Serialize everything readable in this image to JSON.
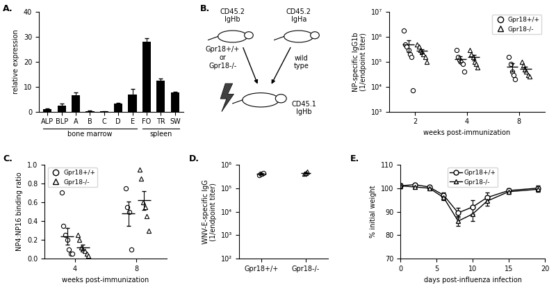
{
  "chart_data": [
    {
      "type": "bar",
      "title": "A.",
      "ylabel": "relative expression",
      "categories": [
        "ALP",
        "BLP",
        "A",
        "B",
        "C",
        "D",
        "E",
        "FO",
        "TR",
        "SW"
      ],
      "values": [
        1.0,
        2.5,
        6.5,
        0.3,
        0.1,
        3.2,
        7.0,
        28.0,
        12.5,
        7.7
      ],
      "error": [
        0.3,
        0.7,
        1.2,
        0.1,
        0.05,
        0.4,
        2.0,
        1.3,
        0.8,
        0.4
      ],
      "groups": [
        {
          "label": "bone marrow",
          "categories": [
            "ALP",
            "BLP",
            "A",
            "B",
            "C",
            "D",
            "E"
          ]
        },
        {
          "label": "spleen",
          "categories": [
            "FO",
            "TR",
            "SW"
          ]
        }
      ],
      "color": "#000000",
      "ylim": [
        0,
        40
      ],
      "yticks": [
        0,
        10,
        20,
        30,
        40
      ]
    },
    {
      "type": "diagram",
      "title": "B.",
      "nodes": [
        {
          "label": "CD45.2\nIgHb"
        },
        {
          "label": "CD45.2\nIgHa"
        },
        {
          "label": "Gpr18+/+\nor\nGpr18-/-"
        },
        {
          "label": "wild\ntype"
        },
        {
          "label": "CD45.1\nIgHb"
        }
      ]
    },
    {
      "type": "dot",
      "ylabel": "NP-specific IgG1b\n(1/endpoint titer)",
      "xlabel": "weeks post-immunization",
      "categories": [
        "2",
        "4",
        "8"
      ],
      "log": "y",
      "legend": "upper right",
      "ylim": [
        1000,
        10000000
      ],
      "yticks": [
        {
          "value": 1000,
          "label": "10³"
        },
        {
          "value": 10000,
          "label": "10⁴"
        },
        {
          "value": 100000,
          "label": "10⁵"
        },
        {
          "value": 1000000,
          "label": "10⁶"
        },
        {
          "value": 10000000,
          "label": "10⁷"
        }
      ],
      "series": [
        {
          "name": "Gpr18+/+",
          "marker": "circle",
          "values": [
            [
              1800000,
              500000,
              400000,
              300000,
              200000,
              150000,
              7000
            ],
            [
              300000,
              150000,
              120000,
              100000,
              80000,
              40000
            ],
            [
              150000,
              80000,
              40000,
              30000,
              20000
            ]
          ],
          "mean": [
            480000,
            130000,
            64000
          ],
          "error": [
            230000,
            37000,
            24000
          ]
        },
        {
          "name": "Gpr18-/-",
          "marker": "triangle",
          "values": [
            [
              500000,
              400000,
              300000,
              250000,
              200000,
              150000,
              100000
            ],
            [
              300000,
              200000,
              150000,
              100000,
              80000,
              60000
            ],
            [
              100000,
              70000,
              50000,
              40000,
              30000,
              25000
            ]
          ],
          "mean": [
            270000,
            150000,
            52000
          ],
          "error": [
            50000,
            37000,
            12000
          ]
        }
      ]
    },
    {
      "type": "dot",
      "title": "C.",
      "ylabel": "NP4:NP16 binding ratio",
      "xlabel": "weeks post-immunization",
      "categories": [
        "4",
        "8"
      ],
      "legend": "upper left",
      "ylim": [
        0,
        1.0
      ],
      "yticks": [
        {
          "value": 0,
          "label": "0.0"
        },
        0.2,
        0.4,
        0.6,
        0.8,
        {
          "value": 1,
          "label": "1.0"
        }
      ],
      "series": [
        {
          "name": "Gpr18+/+",
          "marker": "circle",
          "values": [
            [
              0.7,
              0.35,
              0.25,
              0.2,
              0.1,
              0.05,
              0.05
            ],
            [
              0.75,
              0.55,
              0.5,
              0.1
            ]
          ],
          "mean": [
            0.24,
            0.48
          ],
          "error": [
            0.09,
            0.13
          ]
        },
        {
          "name": "Gpr18-/-",
          "marker": "triangle",
          "values": [
            [
              0.25,
              0.2,
              0.12,
              0.1,
              0.08,
              0.05,
              0.03
            ],
            [
              0.95,
              0.85,
              0.6,
              0.55,
              0.45,
              0.3
            ]
          ],
          "mean": [
            0.12,
            0.62
          ],
          "error": [
            0.03,
            0.1
          ]
        }
      ]
    },
    {
      "type": "dot",
      "title": "D.",
      "ylabel": "WNV-E-specific IgG\n(1/endpoint titer)",
      "log": "y",
      "ylim": [
        100,
        1000000
      ],
      "yticks": [
        {
          "value": 100,
          "label": "10²"
        },
        {
          "value": 1000,
          "label": "10³"
        },
        {
          "value": 10000,
          "label": "10⁴"
        },
        {
          "value": 100000,
          "label": "10⁵"
        },
        {
          "value": 1000000,
          "label": "10⁶"
        }
      ],
      "series": [
        {
          "name": "Gpr18+/+",
          "marker": "circle",
          "values": [
            350000,
            400000,
            420000,
            450000
          ],
          "mean": 405000,
          "error": 20000
        },
        {
          "name": "Gpr18-/-",
          "marker": "triangle",
          "values": [
            400000,
            430000,
            500000
          ],
          "mean": 443000,
          "error": 30000
        }
      ]
    },
    {
      "type": "line",
      "title": "E.",
      "xlabel": "days post-influenza infection",
      "ylabel": "% initial weight",
      "x": [
        0,
        2,
        4,
        6,
        8,
        10,
        12,
        15,
        19
      ],
      "legend": "upper center",
      "xlim": [
        0,
        20
      ],
      "xticks": [
        0,
        5,
        10,
        15,
        20
      ],
      "ylim": [
        70,
        110
      ],
      "yticks": [
        70,
        80,
        90,
        100,
        110
      ],
      "series": [
        {
          "name": "Gpr18+/+",
          "marker": "circle",
          "color": "#000000",
          "values": [
            101,
            101.5,
            100.5,
            97,
            89.5,
            92,
            96,
            99,
            100
          ],
          "error": [
            1,
            0.5,
            0.5,
            1,
            2,
            3,
            2,
            1,
            1
          ]
        },
        {
          "name": "Gpr18-/-",
          "marker": "triangle",
          "color": "#000000",
          "values": [
            101,
            100.5,
            100,
            96,
            86,
            89,
            94.5,
            98.5,
            99.5
          ],
          "error": [
            1,
            0.5,
            0.5,
            1,
            2,
            3,
            2,
            1,
            1
          ]
        }
      ]
    }
  ]
}
